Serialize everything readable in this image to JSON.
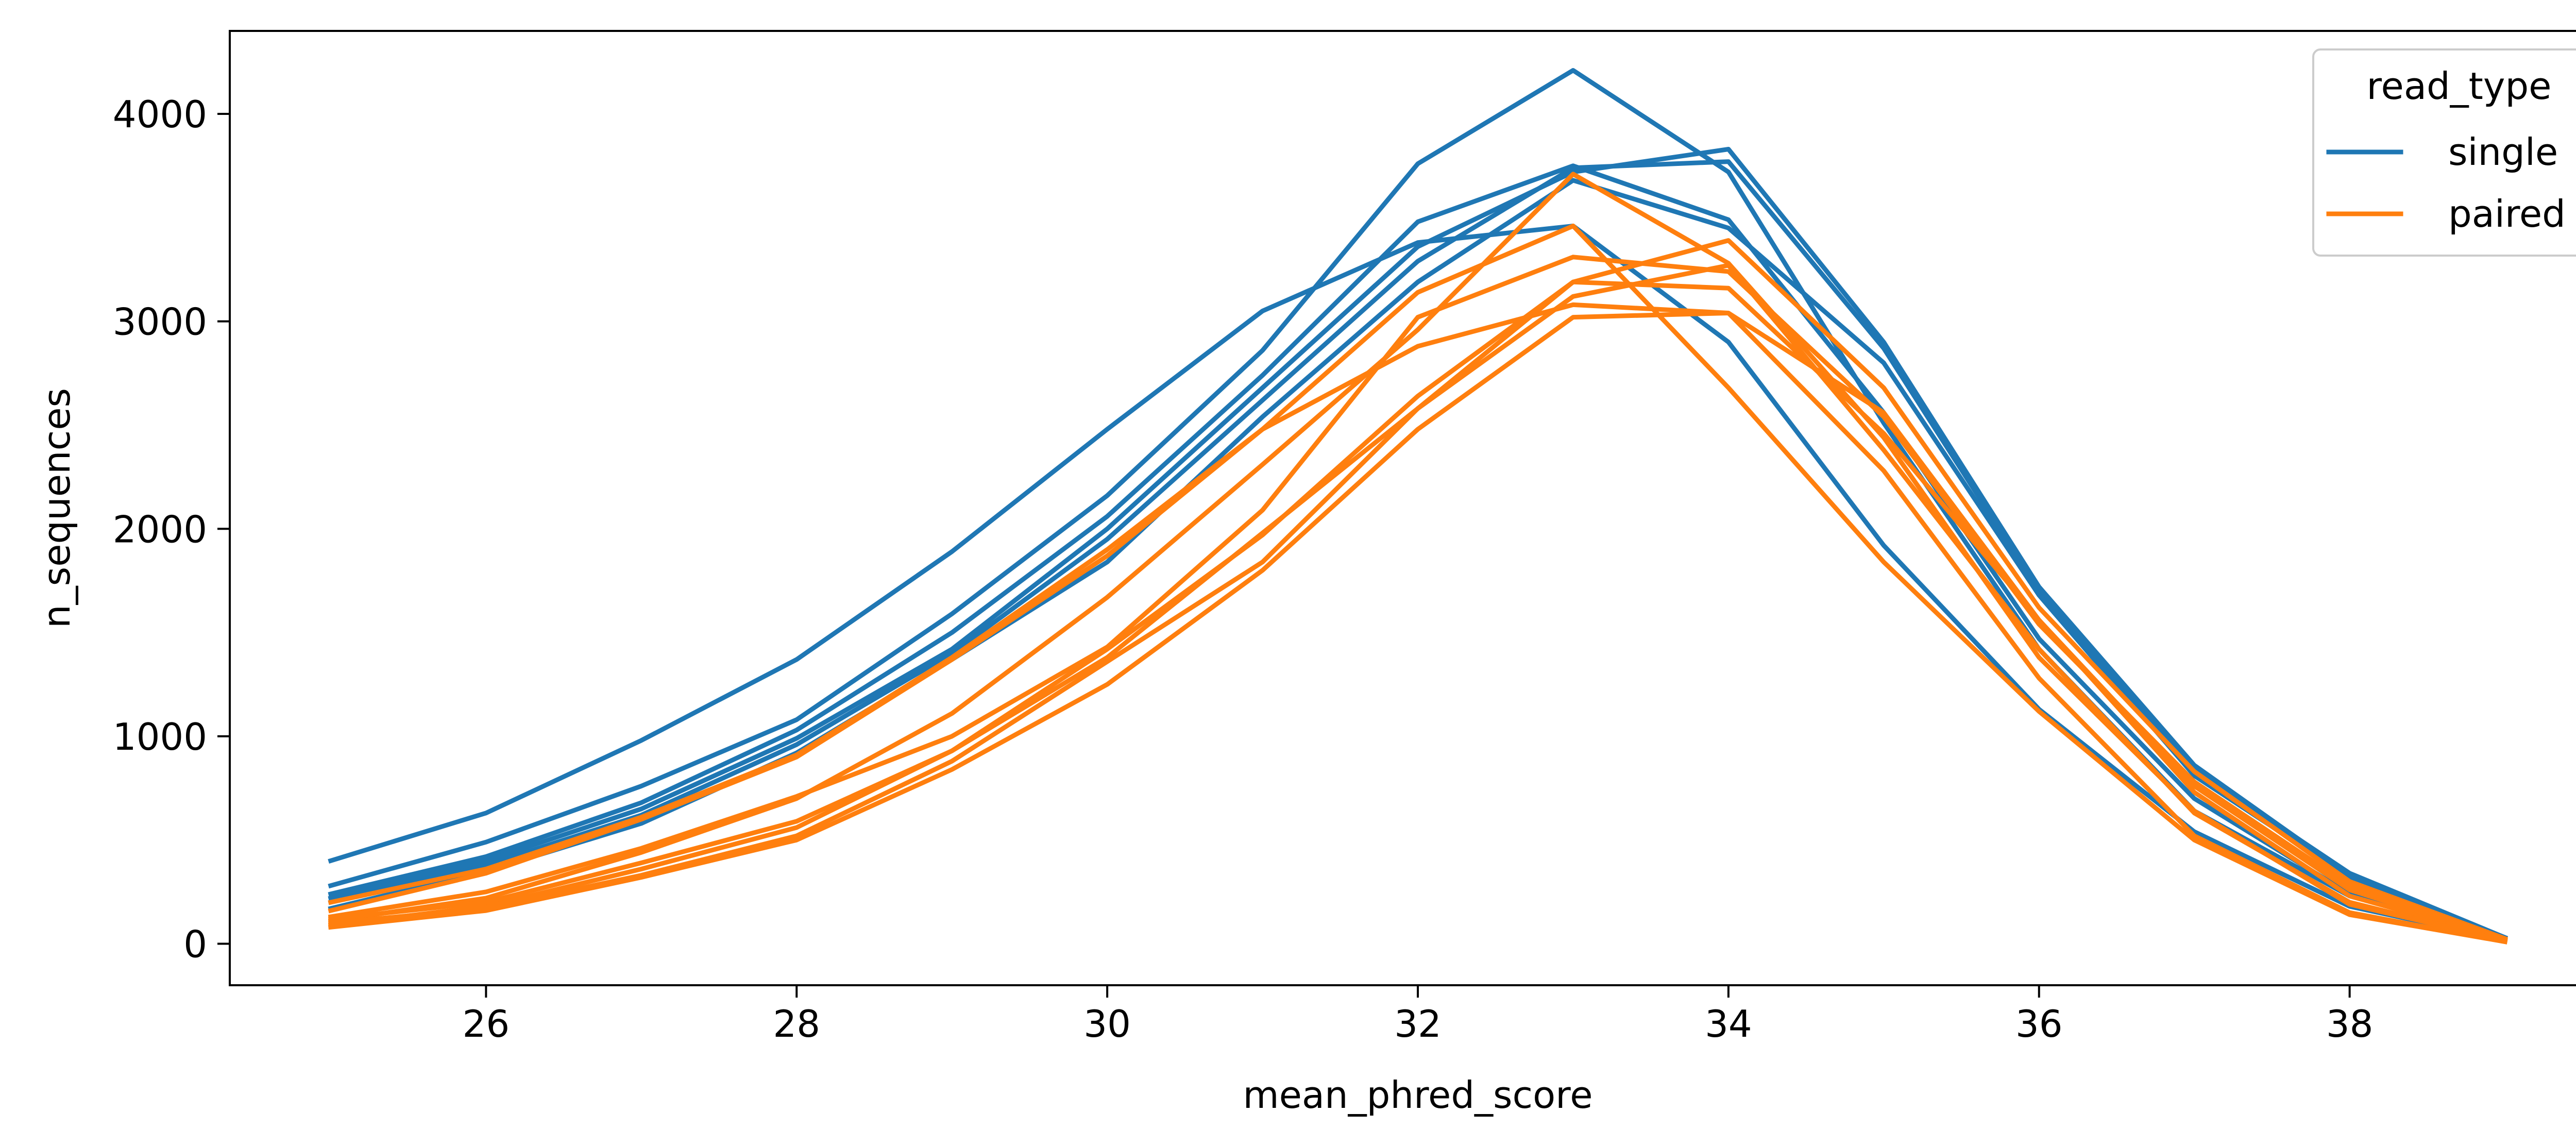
{
  "chart_data": {
    "type": "line",
    "xlabel": "mean_phred_score",
    "ylabel": "n_sequences",
    "xlim": [
      24.35,
      39.65
    ],
    "ylim": [
      -200,
      4400
    ],
    "x_ticks": [
      26,
      28,
      30,
      32,
      34,
      36,
      38
    ],
    "y_ticks": [
      0,
      1000,
      2000,
      3000,
      4000
    ],
    "grid": false,
    "legend": {
      "title": "read_type",
      "placement": "top-right",
      "entries": [
        "single",
        "paired"
      ]
    },
    "x": [
      25,
      26,
      27,
      28,
      29,
      30,
      31,
      32,
      33,
      34,
      35,
      36,
      37,
      38,
      39
    ],
    "hue_colors": {
      "single": "#1f77b4",
      "paired": "#ff7f0e"
    },
    "series": [
      {
        "read_type": "single",
        "values": [
          400,
          630,
          980,
          1370,
          1890,
          2480,
          3050,
          3380,
          3460,
          2900,
          1920,
          1130,
          540,
          180,
          20
        ]
      },
      {
        "read_type": "single",
        "values": [
          280,
          490,
          760,
          1080,
          1590,
          2160,
          2860,
          3760,
          4210,
          3720,
          2510,
          1420,
          640,
          230,
          25
        ]
      },
      {
        "read_type": "single",
        "values": [
          240,
          420,
          680,
          1030,
          1500,
          2060,
          2740,
          3480,
          3750,
          3490,
          2560,
          1470,
          700,
          240,
          25
        ]
      },
      {
        "read_type": "single",
        "values": [
          200,
          380,
          620,
          960,
          1400,
          1950,
          2620,
          3290,
          3740,
          3770,
          2870,
          1700,
          840,
          340,
          30
        ]
      },
      {
        "read_type": "single",
        "values": [
          170,
          350,
          580,
          920,
          1370,
          1840,
          2540,
          3190,
          3680,
          3450,
          2800,
          1680,
          810,
          320,
          30
        ]
      },
      {
        "read_type": "single",
        "values": [
          220,
          400,
          650,
          990,
          1420,
          2000,
          2680,
          3360,
          3720,
          3830,
          2900,
          1720,
          860,
          330,
          30
        ]
      },
      {
        "read_type": "paired",
        "values": [
          160,
          340,
          600,
          900,
          1370,
          1870,
          2480,
          2880,
          3080,
          3040,
          2560,
          1560,
          730,
          230,
          20
        ]
      },
      {
        "read_type": "paired",
        "values": [
          200,
          360,
          610,
          910,
          1380,
          1900,
          2480,
          3140,
          3460,
          2680,
          1840,
          1120,
          500,
          140,
          10
        ]
      },
      {
        "read_type": "paired",
        "values": [
          110,
          220,
          440,
          700,
          1110,
          1670,
          2310,
          2960,
          3710,
          3280,
          2440,
          1380,
          640,
          190,
          15
        ]
      },
      {
        "read_type": "paired",
        "values": [
          130,
          250,
          460,
          710,
          1000,
          1430,
          2090,
          3020,
          3310,
          3240,
          2540,
          1540,
          780,
          280,
          20
        ]
      },
      {
        "read_type": "paired",
        "values": [
          90,
          180,
          360,
          560,
          930,
          1380,
          1980,
          2580,
          3190,
          3160,
          2460,
          1560,
          760,
          260,
          20
        ]
      },
      {
        "read_type": "paired",
        "values": [
          80,
          160,
          320,
          500,
          840,
          1250,
          1800,
          2480,
          3020,
          3040,
          2280,
          1280,
          520,
          150,
          10
        ]
      },
      {
        "read_type": "paired",
        "values": [
          100,
          170,
          330,
          520,
          880,
          1360,
          1840,
          2580,
          3120,
          3270,
          2380,
          1420,
          630,
          200,
          15
        ]
      },
      {
        "read_type": "paired",
        "values": [
          120,
          200,
          390,
          590,
          930,
          1420,
          1970,
          2640,
          3190,
          3390,
          2680,
          1620,
          830,
          300,
          25
        ]
      }
    ]
  }
}
